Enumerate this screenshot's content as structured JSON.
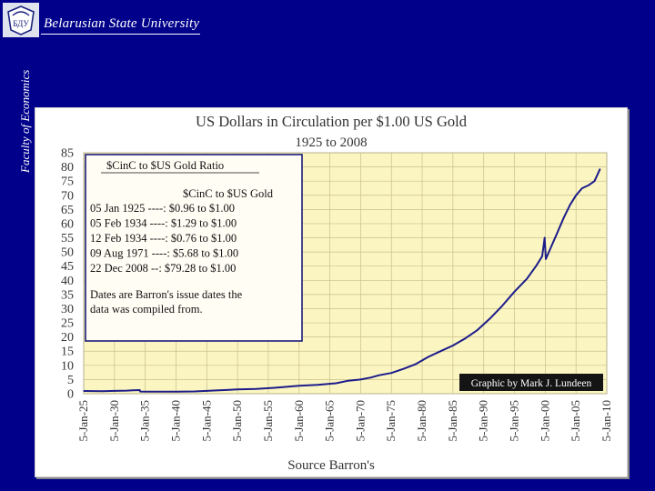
{
  "header": {
    "university": "Belarusian State University",
    "faculty": "Faculty of Economics",
    "logo_text": "БДУ"
  },
  "colors": {
    "background": "#00008b",
    "plot_bg": "#fbf5c2",
    "grid": "#c9c08a",
    "line": "#1c1c8a",
    "legend_box": "#1a1a7a"
  },
  "chart_data": {
    "type": "line",
    "title": "US Dollars in Circulation per $1.00 US Gold",
    "subtitle": "1925 to 2008",
    "xlabel": "Source Barron's",
    "ylabel": "",
    "ylim": [
      0,
      85
    ],
    "yticks": [
      0,
      5,
      10,
      15,
      20,
      25,
      30,
      35,
      40,
      45,
      50,
      55,
      60,
      65,
      70,
      75,
      80,
      85
    ],
    "xlim": [
      1925,
      2010
    ],
    "xticks": [
      {
        "year": 1925,
        "label": "5-Jan-25"
      },
      {
        "year": 1930,
        "label": "5-Jan-30"
      },
      {
        "year": 1935,
        "label": "5-Jan-35"
      },
      {
        "year": 1940,
        "label": "5-Jan-40"
      },
      {
        "year": 1945,
        "label": "5-Jan-45"
      },
      {
        "year": 1950,
        "label": "5-Jan-50"
      },
      {
        "year": 1955,
        "label": "5-Jan-55"
      },
      {
        "year": 1960,
        "label": "5-Jan-60"
      },
      {
        "year": 1965,
        "label": "5-Jan-65"
      },
      {
        "year": 1970,
        "label": "5-Jan-70"
      },
      {
        "year": 1975,
        "label": "5-Jan-75"
      },
      {
        "year": 1980,
        "label": "5-Jan-80"
      },
      {
        "year": 1985,
        "label": "5-Jan-85"
      },
      {
        "year": 1990,
        "label": "5-Jan-90"
      },
      {
        "year": 1995,
        "label": "5-Jan-95"
      },
      {
        "year": 2000,
        "label": "5-Jan-00"
      },
      {
        "year": 2005,
        "label": "5-Jan-05"
      },
      {
        "year": 2010,
        "label": "5-Jan-10"
      }
    ],
    "series": [
      {
        "name": "$CinC to $US Gold",
        "x": [
          1925,
          1928,
          1930,
          1932,
          1933,
          1934.1,
          1934.2,
          1936,
          1938,
          1939.9,
          1940.1,
          1943,
          1945,
          1947,
          1950,
          1953,
          1956,
          1960,
          1963,
          1966,
          1968,
          1970,
          1971.6,
          1973,
          1975,
          1977,
          1979,
          1981,
          1983,
          1985,
          1987,
          1989,
          1991,
          1993,
          1995,
          1997,
          1998.5,
          1999.5,
          1999.9,
          2000.1,
          2001,
          2002,
          2003,
          2004,
          2005,
          2006,
          2007,
          2008,
          2008.9
        ],
        "y": [
          0.96,
          0.9,
          1.0,
          1.1,
          1.2,
          1.29,
          0.76,
          0.75,
          0.7,
          0.7,
          0.7,
          0.8,
          1.0,
          1.2,
          1.5,
          1.7,
          2.1,
          2.8,
          3.1,
          3.7,
          4.6,
          5.0,
          5.68,
          6.5,
          7.3,
          8.8,
          10.5,
          13.0,
          15.0,
          17.0,
          19.5,
          22.5,
          26.5,
          31.0,
          36.0,
          40.5,
          45.0,
          48.5,
          55.0,
          47.5,
          52.0,
          57.0,
          62.0,
          66.5,
          70.0,
          72.5,
          73.5,
          75.0,
          79.28
        ]
      }
    ],
    "legend": {
      "title": "$CinC to $US Gold Ratio",
      "column_header": "$CinC to $US Gold",
      "rows": [
        "05 Jan 1925 ----:  $0.96  to $1.00",
        "05 Feb 1934 ----:  $1.29  to $1.00",
        "12 Feb 1934 ----:  $0.76  to $1.00",
        "09 Aug 1971 ----:  $5.68  to $1.00",
        "22 Dec 2008 --:  $79.28 to $1.00"
      ],
      "note_line1": "Dates are Barron's issue dates the",
      "note_line2": "data was compiled from.",
      "position": "top-left"
    },
    "credit": "Graphic by  Mark J. Lundeen"
  }
}
